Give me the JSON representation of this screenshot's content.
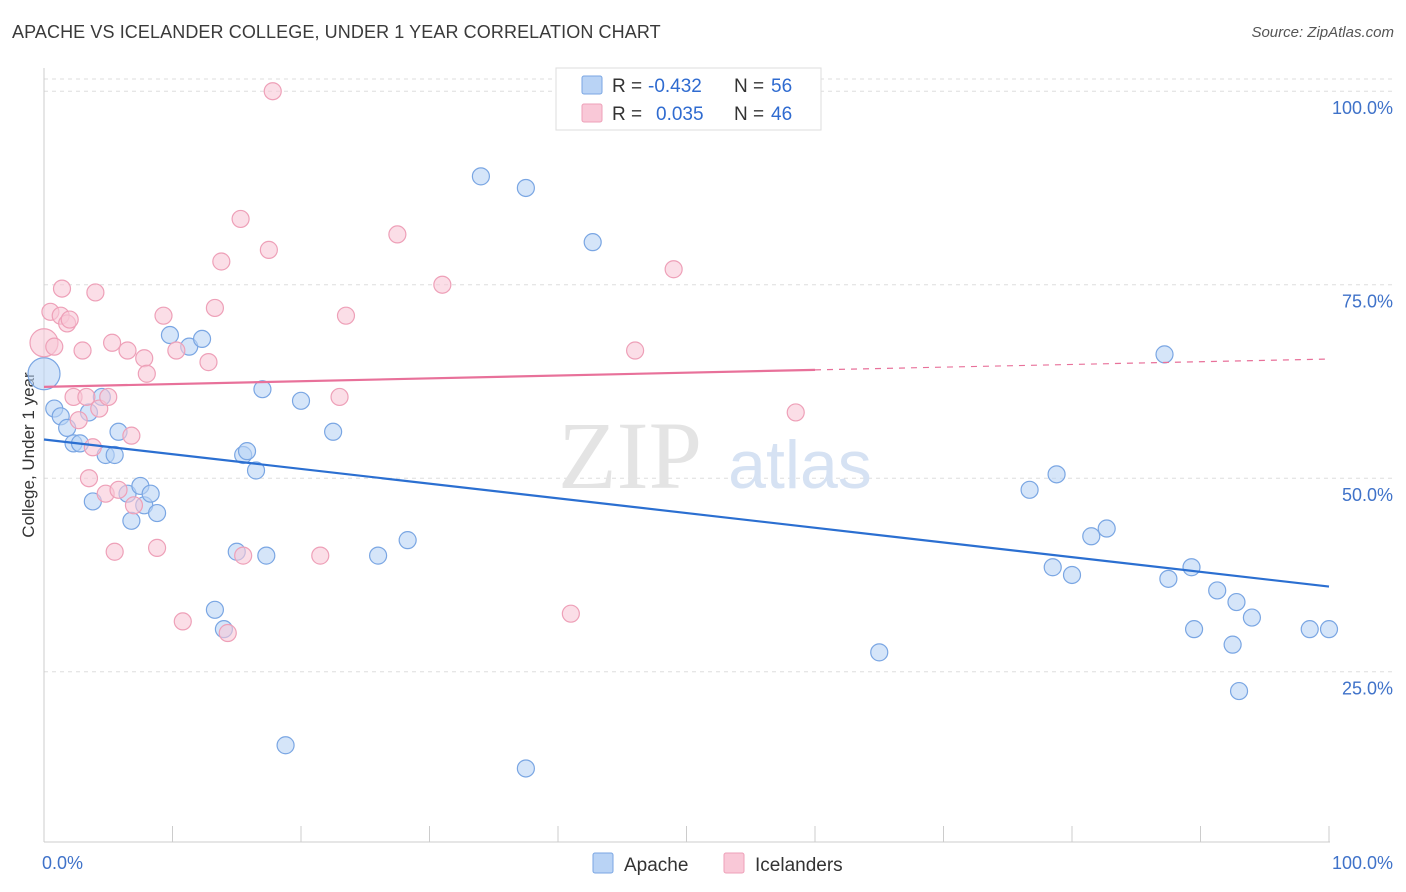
{
  "title": "APACHE VS ICELANDER COLLEGE, UNDER 1 YEAR CORRELATION CHART",
  "source": "Source: ZipAtlas.com",
  "watermark": {
    "zip": "ZIP",
    "atlas": "atlas"
  },
  "legend_top": {
    "rows": [
      {
        "r_label": "R =",
        "r_value": "-0.432",
        "n_label": "N =",
        "n_value": "56"
      },
      {
        "r_label": "R =",
        "r_value": "0.035",
        "n_label": "N =",
        "n_value": "46"
      }
    ]
  },
  "legend_bottom": {
    "items": [
      "Apache",
      "Icelanders"
    ]
  },
  "colors": {
    "apache_fill": "#b9d3f5",
    "apache_stroke": "#7aa6e3",
    "apache_line": "#2b6fd1",
    "iceland_fill": "#f9c8d7",
    "iceland_stroke": "#eea0b8",
    "iceland_line": "#e8719a",
    "tick_label": "#3f72c9",
    "grid": "#dddddd"
  },
  "chart_data": {
    "type": "scatter",
    "ylabel": "College, Under 1 year",
    "xlabel": "",
    "x_tick_labels": [
      "0.0%",
      "100.0%"
    ],
    "y_tick_labels": [
      "25.0%",
      "50.0%",
      "75.0%",
      "100.0%"
    ],
    "xlim": [
      0,
      100
    ],
    "ylim": [
      3,
      103
    ],
    "grid": true,
    "series": [
      {
        "name": "Apache",
        "r": -0.432,
        "n": 56,
        "trend": {
          "x0": 0,
          "y0": 55.0,
          "x1": 100,
          "y1": 36.0
        },
        "points": [
          [
            0.0,
            63.5
          ],
          [
            0.8,
            59.0
          ],
          [
            1.3,
            58.0
          ],
          [
            1.8,
            56.5
          ],
          [
            2.3,
            54.5
          ],
          [
            2.8,
            54.5
          ],
          [
            3.5,
            58.5
          ],
          [
            3.8,
            47.0
          ],
          [
            4.5,
            60.5
          ],
          [
            4.8,
            53.0
          ],
          [
            5.5,
            53.0
          ],
          [
            5.8,
            56.0
          ],
          [
            6.5,
            48.0
          ],
          [
            6.8,
            44.5
          ],
          [
            7.5,
            49.0
          ],
          [
            7.8,
            46.5
          ],
          [
            8.3,
            48.0
          ],
          [
            8.8,
            45.5
          ],
          [
            9.8,
            68.5
          ],
          [
            11.3,
            67.0
          ],
          [
            12.3,
            68.0
          ],
          [
            13.3,
            33.0
          ],
          [
            14.0,
            30.5
          ],
          [
            15.0,
            40.5
          ],
          [
            15.5,
            53.0
          ],
          [
            15.8,
            53.5
          ],
          [
            16.5,
            51.0
          ],
          [
            17.0,
            61.5
          ],
          [
            17.3,
            40.0
          ],
          [
            18.8,
            15.5
          ],
          [
            20.0,
            60.0
          ],
          [
            22.5,
            56.0
          ],
          [
            26.0,
            40.0
          ],
          [
            28.3,
            42.0
          ],
          [
            34.0,
            89.0
          ],
          [
            37.5,
            87.5
          ],
          [
            37.5,
            12.5
          ],
          [
            42.7,
            80.5
          ],
          [
            65.0,
            27.5
          ],
          [
            76.7,
            48.5
          ],
          [
            78.5,
            38.5
          ],
          [
            78.8,
            50.5
          ],
          [
            80.0,
            37.5
          ],
          [
            81.5,
            42.5
          ],
          [
            82.7,
            43.5
          ],
          [
            87.2,
            66.0
          ],
          [
            87.5,
            37.0
          ],
          [
            89.3,
            38.5
          ],
          [
            89.5,
            30.5
          ],
          [
            91.3,
            35.5
          ],
          [
            92.5,
            28.5
          ],
          [
            92.8,
            34.0
          ],
          [
            93.0,
            22.5
          ],
          [
            94.0,
            32.0
          ],
          [
            98.5,
            30.5
          ],
          [
            100.0,
            30.5
          ]
        ]
      },
      {
        "name": "Icelanders",
        "r": 0.035,
        "n": 46,
        "trend": {
          "x0": 0,
          "y0": 61.8,
          "x1": 60,
          "y1": 64.0,
          "dash_to_x": 100,
          "dash_to_y": 65.4
        },
        "points": [
          [
            0.0,
            67.5
          ],
          [
            0.5,
            71.5
          ],
          [
            0.8,
            67.0
          ],
          [
            1.3,
            71.0
          ],
          [
            1.4,
            74.5
          ],
          [
            1.8,
            70.0
          ],
          [
            2.0,
            70.5
          ],
          [
            2.3,
            60.5
          ],
          [
            2.7,
            57.5
          ],
          [
            3.0,
            66.5
          ],
          [
            3.3,
            60.5
          ],
          [
            3.5,
            50.0
          ],
          [
            3.8,
            54.0
          ],
          [
            4.0,
            74.0
          ],
          [
            4.3,
            59.0
          ],
          [
            4.8,
            48.0
          ],
          [
            5.0,
            60.5
          ],
          [
            5.3,
            67.5
          ],
          [
            5.5,
            40.5
          ],
          [
            5.8,
            48.5
          ],
          [
            6.5,
            66.5
          ],
          [
            6.8,
            55.5
          ],
          [
            7.0,
            46.5
          ],
          [
            7.8,
            65.5
          ],
          [
            8.0,
            63.5
          ],
          [
            8.8,
            41.0
          ],
          [
            9.3,
            71.0
          ],
          [
            10.3,
            66.5
          ],
          [
            10.8,
            31.5
          ],
          [
            12.8,
            65.0
          ],
          [
            13.3,
            72.0
          ],
          [
            13.8,
            78.0
          ],
          [
            14.3,
            30.0
          ],
          [
            15.3,
            83.5
          ],
          [
            15.5,
            40.0
          ],
          [
            17.5,
            79.5
          ],
          [
            17.8,
            100.0
          ],
          [
            21.5,
            40.0
          ],
          [
            23.0,
            60.5
          ],
          [
            23.5,
            71.0
          ],
          [
            27.5,
            81.5
          ],
          [
            31.0,
            75.0
          ],
          [
            41.0,
            32.5
          ],
          [
            46.0,
            66.5
          ],
          [
            49.0,
            77.0
          ],
          [
            58.5,
            58.5
          ]
        ]
      }
    ]
  }
}
